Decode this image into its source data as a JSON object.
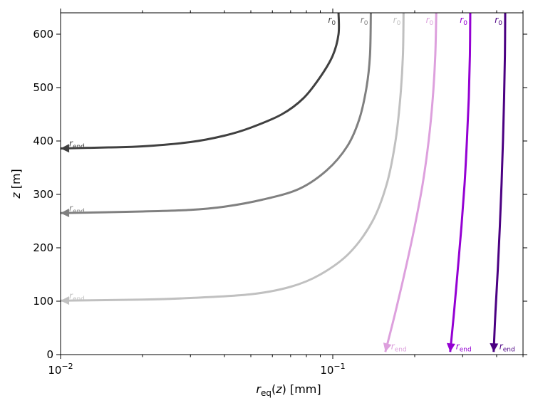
{
  "chart_data": {
    "type": "line",
    "title": "",
    "xlabel": "r_eq(z) [mm]",
    "ylabel": "z [m]",
    "xscale": "log",
    "xlim": [
      0.01,
      0.5
    ],
    "ylim": [
      0,
      640
    ],
    "grid": false,
    "legend": "none",
    "x_ticks": [
      {
        "value": 0.01,
        "base": "10",
        "exp": "−2"
      },
      {
        "value": 0.1,
        "base": "10",
        "exp": "−1"
      }
    ],
    "y_ticks": [
      0,
      100,
      200,
      300,
      400,
      500,
      600
    ],
    "start_label": {
      "main": "r",
      "sub": "0"
    },
    "end_label": {
      "main": "r",
      "sub": "end"
    },
    "series": [
      {
        "color": "#404040",
        "r0": 0.105,
        "z_end": 386,
        "end_type": "horizontal",
        "points": [
          [
            0.105,
            640
          ],
          [
            0.105,
            600
          ],
          [
            0.1,
            560
          ],
          [
            0.09,
            520
          ],
          [
            0.078,
            480
          ],
          [
            0.065,
            450
          ],
          [
            0.05,
            425
          ],
          [
            0.04,
            410
          ],
          [
            0.03,
            398
          ],
          [
            0.02,
            390
          ],
          [
            0.015,
            388
          ],
          [
            0.01,
            386
          ]
        ]
      },
      {
        "color": "#808080",
        "r0": 0.138,
        "z_end": 265,
        "end_type": "horizontal",
        "points": [
          [
            0.138,
            640
          ],
          [
            0.137,
            560
          ],
          [
            0.133,
            500
          ],
          [
            0.125,
            440
          ],
          [
            0.113,
            390
          ],
          [
            0.095,
            345
          ],
          [
            0.075,
            310
          ],
          [
            0.055,
            290
          ],
          [
            0.04,
            277
          ],
          [
            0.03,
            271
          ],
          [
            0.02,
            268
          ],
          [
            0.01,
            265
          ]
        ]
      },
      {
        "color": "#c0c0c0",
        "r0": 0.182,
        "z_end": 101,
        "end_type": "horizontal",
        "points": [
          [
            0.182,
            640
          ],
          [
            0.181,
            560
          ],
          [
            0.177,
            480
          ],
          [
            0.17,
            400
          ],
          [
            0.158,
            320
          ],
          [
            0.14,
            250
          ],
          [
            0.115,
            190
          ],
          [
            0.09,
            150
          ],
          [
            0.07,
            127
          ],
          [
            0.05,
            113
          ],
          [
            0.03,
            106
          ],
          [
            0.02,
            103
          ],
          [
            0.01,
            101
          ]
        ]
      },
      {
        "color": "#dda0dd",
        "r0": 0.24,
        "z_end": 5,
        "end_type": "vertical",
        "points": [
          [
            0.24,
            640
          ],
          [
            0.238,
            560
          ],
          [
            0.233,
            480
          ],
          [
            0.225,
            400
          ],
          [
            0.214,
            320
          ],
          [
            0.2,
            240
          ],
          [
            0.185,
            160
          ],
          [
            0.17,
            80
          ],
          [
            0.156,
            5
          ]
        ]
      },
      {
        "color": "#9400d3",
        "r0": 0.32,
        "z_end": 5,
        "end_type": "vertical",
        "points": [
          [
            0.32,
            640
          ],
          [
            0.319,
            560
          ],
          [
            0.316,
            480
          ],
          [
            0.311,
            400
          ],
          [
            0.305,
            320
          ],
          [
            0.297,
            240
          ],
          [
            0.288,
            160
          ],
          [
            0.279,
            80
          ],
          [
            0.27,
            5
          ]
        ]
      },
      {
        "color": "#4b0082",
        "r0": 0.43,
        "z_end": 5,
        "end_type": "vertical",
        "points": [
          [
            0.43,
            640
          ],
          [
            0.429,
            560
          ],
          [
            0.426,
            480
          ],
          [
            0.422,
            400
          ],
          [
            0.417,
            320
          ],
          [
            0.411,
            240
          ],
          [
            0.404,
            160
          ],
          [
            0.396,
            80
          ],
          [
            0.39,
            5
          ]
        ]
      }
    ]
  }
}
